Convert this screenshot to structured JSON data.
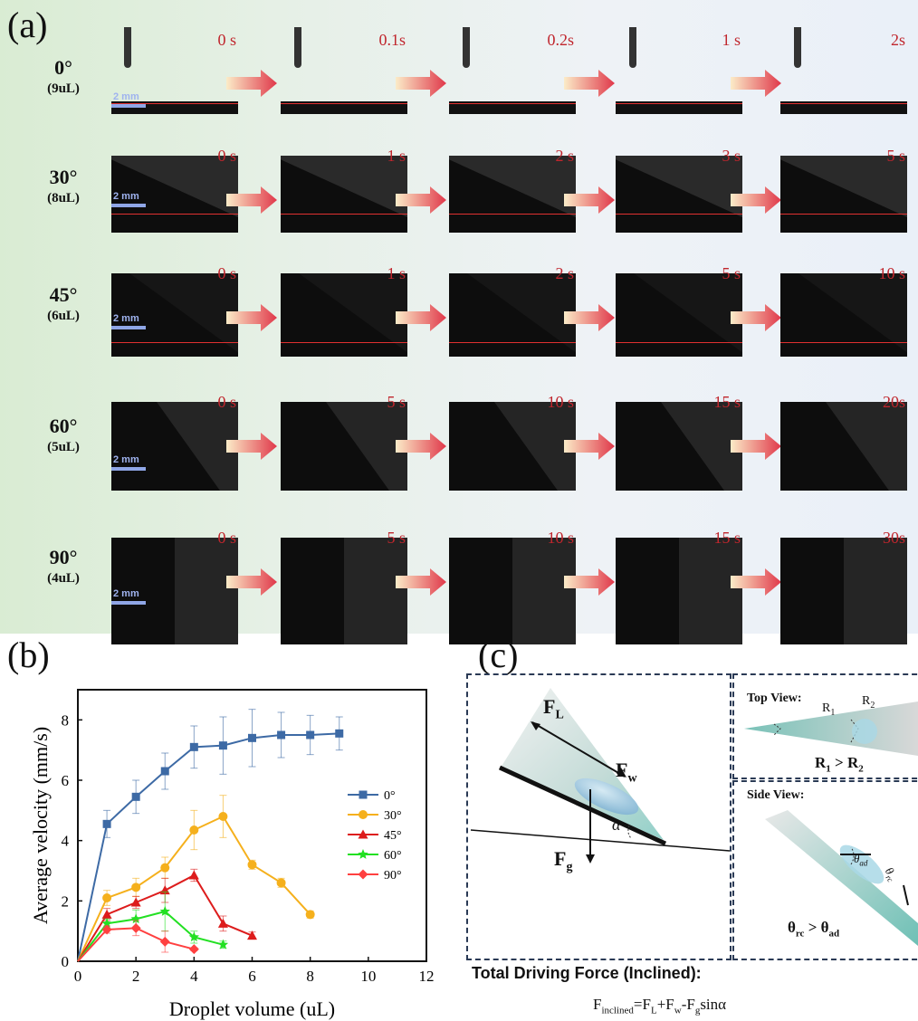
{
  "panel_a": {
    "letter": "(a)",
    "scale_label": "2 mm",
    "rows": [
      {
        "angle": "0°",
        "volume": "(9uL)",
        "times": [
          "0 s",
          "0.1s",
          "0.2s",
          "1 s",
          "2s"
        ]
      },
      {
        "angle": "30°",
        "volume": "(8uL)",
        "times": [
          "0 s",
          "1 s",
          "2 s",
          "3 s",
          "5 s"
        ]
      },
      {
        "angle": "45°",
        "volume": "(6uL)",
        "times": [
          "0 s",
          "1 s",
          "2 s",
          "5 s",
          "10 s"
        ]
      },
      {
        "angle": "60°",
        "volume": "(5uL)",
        "times": [
          "0 s",
          "5 s",
          "10 s",
          "15 s",
          "20s"
        ]
      },
      {
        "angle": "90°",
        "volume": "(4uL)",
        "times": [
          "0 s",
          "5 s",
          "10 s",
          "15 s",
          "30s"
        ]
      }
    ]
  },
  "panel_b": {
    "letter": "(b)"
  },
  "chart_data": {
    "type": "line",
    "xlabel": "Droplet volume (uL)",
    "ylabel": "Average velocity (mm/s)",
    "xlim": [
      0,
      12
    ],
    "ylim": [
      0,
      9
    ],
    "xticks": [
      "0",
      "2",
      "4",
      "6",
      "8",
      "10",
      "12"
    ],
    "yticks": [
      "0",
      "2",
      "4",
      "6",
      "8"
    ],
    "legend_position": "bottom-right",
    "series": [
      {
        "name": "0°",
        "color": "#3d6aa5",
        "marker": "square",
        "x": [
          0,
          1,
          2,
          3,
          4,
          5,
          6,
          7,
          8,
          9
        ],
        "y": [
          0,
          4.55,
          5.45,
          6.3,
          7.1,
          7.15,
          7.4,
          7.5,
          7.5,
          7.55
        ],
        "err": [
          0,
          0.45,
          0.55,
          0.6,
          0.7,
          0.95,
          0.95,
          0.75,
          0.65,
          0.55
        ]
      },
      {
        "name": "30°",
        "color": "#f5b01c",
        "marker": "circle",
        "x": [
          0,
          1,
          2,
          3,
          4,
          5,
          6,
          7,
          8
        ],
        "y": [
          0,
          2.1,
          2.45,
          3.1,
          4.35,
          4.8,
          3.2,
          2.6,
          1.55
        ],
        "err": [
          0,
          0.25,
          0.3,
          0.35,
          0.65,
          0.7,
          0.15,
          0.15,
          0.12
        ]
      },
      {
        "name": "45°",
        "color": "#dd1c1c",
        "marker": "triangle",
        "x": [
          0,
          1,
          2,
          3,
          4,
          5,
          6
        ],
        "y": [
          0,
          1.55,
          1.95,
          2.35,
          2.85,
          1.25,
          0.85
        ],
        "err": [
          0,
          0.2,
          0.2,
          0.4,
          0.2,
          0.25,
          0.12
        ]
      },
      {
        "name": "60°",
        "color": "#22e022",
        "marker": "star",
        "x": [
          0,
          1,
          2,
          3,
          4,
          5
        ],
        "y": [
          0,
          1.25,
          1.4,
          1.65,
          0.8,
          0.55
        ],
        "err": [
          0,
          0.15,
          0.3,
          0.65,
          0.2,
          0.12
        ]
      },
      {
        "name": "90°",
        "color": "#ff4040",
        "marker": "diamond",
        "x": [
          0,
          1,
          2,
          3,
          4
        ],
        "y": [
          0,
          1.05,
          1.1,
          0.65,
          0.4
        ],
        "err": [
          0,
          0.12,
          0.25,
          0.35,
          0.05
        ]
      }
    ]
  },
  "panel_c": {
    "letter": "(c)",
    "force_labels": {
      "fl_main": "F",
      "fl_sub": "L",
      "fw_main": "F",
      "fw_sub": "w",
      "fg_main": "F",
      "fg_sub": "g",
      "alpha": "α"
    },
    "top_view": {
      "title": "Top View:",
      "r1": "R",
      "r1_sub": "1",
      "r2": "R",
      "r2_sub": "2",
      "relation_main1": "R",
      "relation_sub1": "1",
      "relation_op": " > ",
      "relation_main2": "R",
      "relation_sub2": "2"
    },
    "side_view": {
      "title": "Side View:",
      "theta": "θ",
      "ad": "ad",
      "rc": "rc",
      "op": " > "
    },
    "total_title": "Total Driving Force (Inclined):",
    "formula": {
      "lhs": "F",
      "lhs_sub": "inclined",
      "eq": "=F",
      "fl_sub": "L",
      "plus": "+F",
      "fw_sub": "w",
      "minus": "-F",
      "fg_sub": "g",
      "tail": "sinα"
    }
  }
}
